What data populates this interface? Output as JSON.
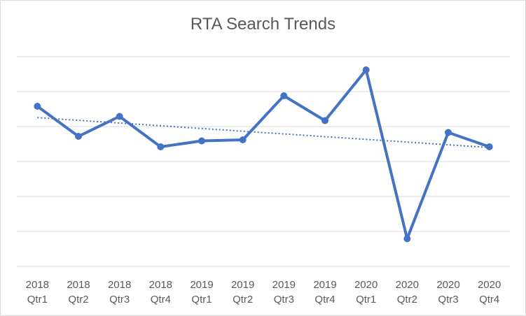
{
  "chart_data": {
    "type": "line",
    "title": "RTA Search Trends",
    "xlabel": "",
    "ylabel": "",
    "categories": [
      [
        "2018",
        "Qtr1"
      ],
      [
        "2018",
        "Qtr2"
      ],
      [
        "2018",
        "Qtr3"
      ],
      [
        "2018",
        "Qtr4"
      ],
      [
        "2019",
        "Qtr1"
      ],
      [
        "2019",
        "Qtr2"
      ],
      [
        "2019",
        "Qtr3"
      ],
      [
        "2019",
        "Qtr4"
      ],
      [
        "2020",
        "Qtr1"
      ],
      [
        "2020",
        "Qtr2"
      ],
      [
        "2020",
        "Qtr3"
      ],
      [
        "2020",
        "Qtr4"
      ]
    ],
    "series": [
      {
        "values": [
          4.58,
          3.72,
          4.29,
          3.42,
          3.59,
          3.62,
          4.88,
          4.17,
          5.62,
          0.79,
          3.83,
          3.42
        ],
        "color": "#4472c4"
      }
    ],
    "trendline": {
      "type": "linear",
      "style": "dotted",
      "color": "#4472c4"
    },
    "ylim": [
      0,
      6
    ],
    "y_ticks_labeled": false,
    "grid": true,
    "legend": "none"
  }
}
